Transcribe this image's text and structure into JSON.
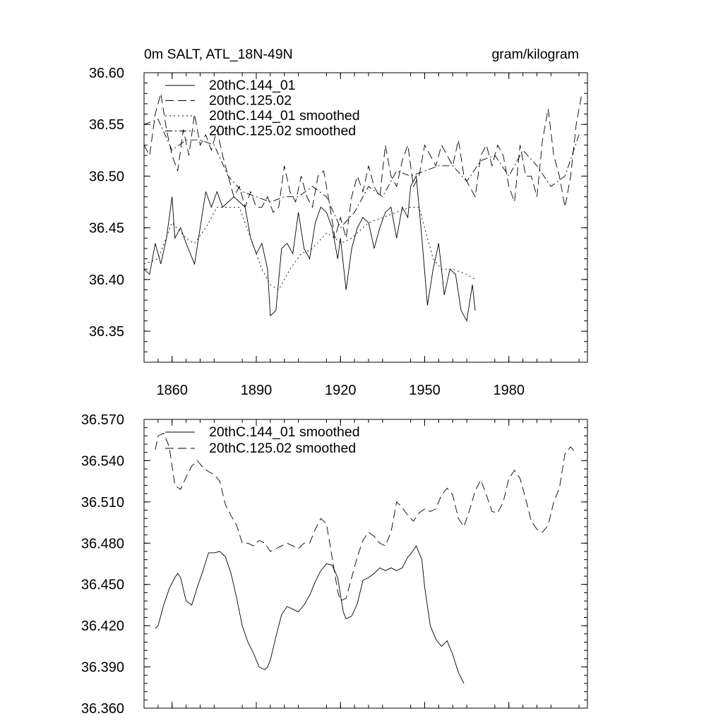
{
  "chart_data": [
    {
      "type": "line",
      "title": "0m SALT, ATL_18N-49N",
      "units": "gram/kilogram",
      "xlim": [
        1850,
        2008
      ],
      "ylim": [
        36.32,
        36.6
      ],
      "xticks": [
        1860,
        1890,
        1920,
        1950,
        1980
      ],
      "xtick_labels": [
        "1860",
        "1890",
        "1920",
        "1950",
        "1980"
      ],
      "yticks": [
        36.35,
        36.4,
        36.45,
        36.5,
        36.55,
        36.6
      ],
      "ytick_labels": [
        "36.35",
        "36.40",
        "36.45",
        "36.50",
        "36.55",
        "36.60"
      ],
      "legend_position": "top-left",
      "series": [
        {
          "name": "20thC.144_01",
          "style": "solid",
          "x": [
            1850,
            1852,
            1854,
            1856,
            1858,
            1860,
            1861,
            1863,
            1865,
            1868,
            1870,
            1872,
            1874,
            1876,
            1878,
            1880,
            1882,
            1884,
            1886,
            1888,
            1890,
            1892,
            1894,
            1895,
            1897,
            1899,
            1901,
            1903,
            1905,
            1907,
            1909,
            1911,
            1913,
            1915,
            1917,
            1919,
            1920,
            1922,
            1924,
            1926,
            1928,
            1930,
            1932,
            1934,
            1936,
            1938,
            1940,
            1942,
            1944,
            1945,
            1947,
            1949,
            1951,
            1953,
            1955,
            1957,
            1959,
            1961,
            1963,
            1965,
            1967,
            1968
          ],
          "values": [
            36.41,
            36.405,
            36.435,
            36.415,
            36.44,
            36.48,
            36.44,
            36.45,
            36.435,
            36.415,
            36.45,
            36.485,
            36.47,
            36.485,
            36.47,
            36.475,
            36.48,
            36.475,
            36.47,
            36.44,
            36.425,
            36.435,
            36.41,
            36.365,
            36.37,
            36.43,
            36.435,
            36.425,
            36.465,
            36.43,
            36.42,
            36.455,
            36.47,
            36.465,
            36.45,
            36.42,
            36.44,
            36.39,
            36.43,
            36.45,
            36.46,
            36.455,
            36.43,
            36.45,
            36.465,
            36.47,
            36.44,
            36.47,
            36.46,
            36.49,
            36.5,
            36.44,
            36.375,
            36.41,
            36.435,
            36.385,
            36.41,
            36.405,
            36.37,
            36.36,
            36.395,
            36.37
          ]
        },
        {
          "name": "20thC.125.02",
          "style": "dashed",
          "x": [
            1850,
            1852,
            1854,
            1856,
            1858,
            1860,
            1862,
            1864,
            1866,
            1868,
            1870,
            1872,
            1874,
            1876,
            1878,
            1880,
            1882,
            1884,
            1886,
            1888,
            1890,
            1892,
            1894,
            1896,
            1898,
            1900,
            1902,
            1904,
            1906,
            1908,
            1910,
            1912,
            1914,
            1916,
            1918,
            1920,
            1922,
            1924,
            1926,
            1928,
            1930,
            1932,
            1934,
            1936,
            1938,
            1940,
            1942,
            1944,
            1946,
            1948,
            1950,
            1952,
            1954,
            1956,
            1958,
            1960,
            1962,
            1964,
            1966,
            1968,
            1970,
            1972,
            1974,
            1976,
            1978,
            1980,
            1982,
            1984,
            1986,
            1988,
            1990,
            1992,
            1994,
            1996,
            1998,
            2000,
            2002,
            2004,
            2006
          ],
          "values": [
            36.53,
            36.52,
            36.56,
            36.58,
            36.545,
            36.52,
            36.505,
            36.545,
            36.52,
            36.56,
            36.53,
            36.54,
            36.525,
            36.545,
            36.52,
            36.5,
            36.48,
            36.49,
            36.47,
            36.485,
            36.47,
            36.47,
            36.48,
            36.465,
            36.47,
            36.51,
            36.485,
            36.475,
            36.5,
            36.48,
            36.47,
            36.5,
            36.505,
            36.475,
            36.44,
            36.46,
            36.44,
            36.48,
            36.5,
            36.485,
            36.51,
            36.49,
            36.48,
            36.53,
            36.5,
            36.49,
            36.515,
            36.53,
            36.49,
            36.5,
            36.53,
            36.52,
            36.51,
            36.53,
            36.52,
            36.51,
            36.535,
            36.5,
            36.49,
            36.48,
            36.52,
            36.53,
            36.51,
            36.53,
            36.52,
            36.49,
            36.475,
            36.53,
            36.5,
            36.5,
            36.48,
            36.535,
            36.565,
            36.52,
            36.5,
            36.47,
            36.5,
            36.55,
            36.58
          ]
        },
        {
          "name": "20thC.144_01 smoothed",
          "style": "dotted",
          "x": [
            1850,
            1855,
            1860,
            1865,
            1868,
            1872,
            1876,
            1880,
            1884,
            1888,
            1892,
            1895,
            1898,
            1902,
            1906,
            1910,
            1915,
            1918,
            1920,
            1924,
            1930,
            1935,
            1940,
            1945,
            1948,
            1950,
            1953,
            1956,
            1960,
            1965,
            1968
          ],
          "values": [
            36.415,
            36.42,
            36.455,
            36.44,
            36.435,
            36.45,
            36.47,
            36.47,
            36.47,
            36.44,
            36.41,
            36.395,
            36.39,
            36.41,
            36.425,
            36.43,
            36.445,
            36.44,
            36.435,
            36.44,
            36.455,
            36.46,
            36.465,
            36.47,
            36.47,
            36.45,
            36.42,
            36.41,
            36.41,
            36.405,
            36.4
          ]
        },
        {
          "name": "20thC.125.02 smoothed",
          "style": "dashdot",
          "x": [
            1850,
            1855,
            1860,
            1865,
            1870,
            1875,
            1880,
            1885,
            1890,
            1895,
            1900,
            1905,
            1910,
            1915,
            1920,
            1925,
            1930,
            1935,
            1940,
            1945,
            1950,
            1955,
            1960,
            1965,
            1970,
            1975,
            1980,
            1985,
            1990,
            1995,
            2000,
            2005
          ],
          "values": [
            36.55,
            36.555,
            36.525,
            36.535,
            36.535,
            36.53,
            36.5,
            36.485,
            36.48,
            36.475,
            36.48,
            36.48,
            36.49,
            36.48,
            36.45,
            36.465,
            36.49,
            36.48,
            36.505,
            36.5,
            36.505,
            36.51,
            36.51,
            36.495,
            36.515,
            36.52,
            36.5,
            36.525,
            36.51,
            36.49,
            36.5,
            36.54
          ]
        }
      ]
    },
    {
      "type": "line",
      "xlim": [
        1850,
        2008
      ],
      "ylim": [
        36.36,
        36.57
      ],
      "xticks": [
        1860,
        1890,
        1920,
        1950,
        1980
      ],
      "yticks": [
        36.36,
        36.39,
        36.42,
        36.45,
        36.48,
        36.51,
        36.54,
        36.57
      ],
      "ytick_labels": [
        "36.360",
        "36.390",
        "36.420",
        "36.450",
        "36.480",
        "36.510",
        "36.540",
        "36.570"
      ],
      "legend_position": "top-left",
      "series": [
        {
          "name": "20thC.144_01 smoothed",
          "style": "solid",
          "x": [
            1854,
            1855,
            1857,
            1859,
            1861,
            1862,
            1863,
            1865,
            1867,
            1869,
            1871,
            1873,
            1875,
            1877,
            1879,
            1881,
            1883,
            1885,
            1887,
            1889,
            1891,
            1893,
            1894,
            1895,
            1897,
            1899,
            1901,
            1903,
            1905,
            1907,
            1909,
            1911,
            1913,
            1915,
            1917,
            1919,
            1921,
            1922,
            1924,
            1926,
            1928,
            1930,
            1932,
            1934,
            1936,
            1938,
            1940,
            1942,
            1944,
            1945,
            1947,
            1949,
            1950,
            1952,
            1954,
            1956,
            1958,
            1960,
            1962,
            1964
          ],
          "values": [
            36.418,
            36.42,
            36.435,
            36.447,
            36.455,
            36.458,
            36.455,
            36.438,
            36.435,
            36.448,
            36.46,
            36.473,
            36.473,
            36.474,
            36.47,
            36.458,
            36.44,
            36.42,
            36.408,
            36.4,
            36.39,
            36.388,
            36.39,
            36.395,
            36.412,
            36.428,
            36.434,
            36.432,
            36.43,
            36.435,
            36.442,
            36.452,
            36.46,
            36.465,
            36.464,
            36.455,
            36.43,
            36.425,
            36.427,
            36.436,
            36.453,
            36.455,
            36.458,
            36.462,
            36.46,
            36.462,
            36.46,
            36.462,
            36.47,
            36.472,
            36.478,
            36.468,
            36.448,
            36.42,
            36.41,
            36.405,
            36.409,
            36.399,
            36.386,
            36.378
          ]
        },
        {
          "name": "20thC.125.02 smoothed",
          "style": "dashed",
          "x": [
            1854,
            1855,
            1857,
            1859,
            1861,
            1863,
            1865,
            1867,
            1869,
            1871,
            1873,
            1875,
            1877,
            1879,
            1881,
            1883,
            1885,
            1887,
            1889,
            1891,
            1893,
            1895,
            1897,
            1899,
            1901,
            1903,
            1905,
            1907,
            1909,
            1911,
            1913,
            1915,
            1917,
            1919,
            1920,
            1922,
            1924,
            1926,
            1928,
            1930,
            1932,
            1934,
            1936,
            1938,
            1940,
            1942,
            1944,
            1946,
            1948,
            1950,
            1952,
            1954,
            1956,
            1958,
            1960,
            1962,
            1964,
            1966,
            1968,
            1970,
            1972,
            1974,
            1976,
            1978,
            1980,
            1982,
            1984,
            1986,
            1988,
            1990,
            1992,
            1994,
            1996,
            1998,
            2000,
            2002,
            2004
          ],
          "values": [
            36.548,
            36.558,
            36.56,
            36.55,
            36.522,
            36.519,
            36.528,
            36.536,
            36.54,
            36.535,
            36.532,
            36.53,
            36.525,
            36.508,
            36.5,
            36.493,
            36.48,
            36.48,
            36.478,
            36.482,
            36.48,
            36.474,
            36.476,
            36.478,
            36.48,
            36.478,
            36.476,
            36.48,
            36.48,
            36.49,
            36.498,
            36.494,
            36.47,
            36.445,
            36.438,
            36.44,
            36.455,
            36.47,
            36.482,
            36.488,
            36.485,
            36.48,
            36.478,
            36.488,
            36.51,
            36.506,
            36.5,
            36.496,
            36.502,
            36.505,
            36.503,
            36.505,
            36.515,
            36.52,
            36.515,
            36.498,
            36.492,
            36.504,
            36.518,
            36.526,
            36.515,
            36.503,
            36.502,
            36.51,
            36.527,
            36.533,
            36.527,
            36.512,
            36.496,
            36.49,
            36.488,
            36.493,
            36.51,
            36.52,
            36.545,
            36.55,
            36.545
          ]
        }
      ]
    }
  ]
}
